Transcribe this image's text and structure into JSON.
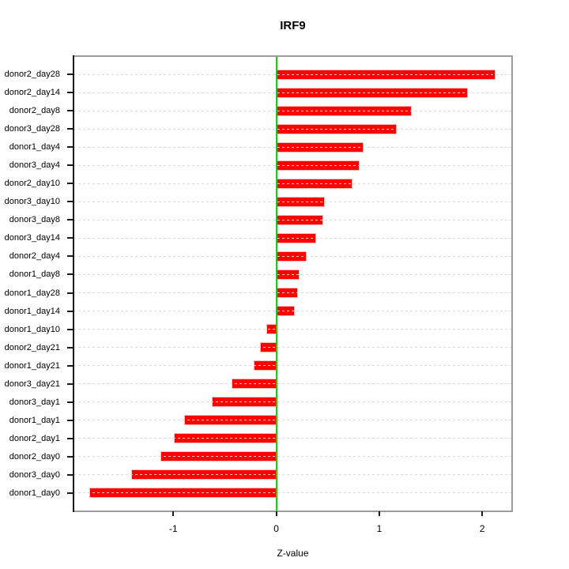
{
  "chart_data": {
    "type": "bar",
    "orientation": "horizontal",
    "title": "IRF9",
    "xlabel": "Z-value",
    "categories": [
      "donor2_day28",
      "donor2_day14",
      "donor2_day8",
      "donor3_day28",
      "donor1_day4",
      "donor3_day4",
      "donor2_day10",
      "donor3_day10",
      "donor3_day8",
      "donor3_day14",
      "donor2_day4",
      "donor1_day8",
      "donor1_day28",
      "donor1_day14",
      "donor1_day10",
      "donor2_day21",
      "donor1_day21",
      "donor3_day21",
      "donor3_day1",
      "donor1_day1",
      "donor2_day1",
      "donor2_day0",
      "donor3_day0",
      "donor1_day0"
    ],
    "values": [
      2.12,
      1.85,
      1.31,
      1.16,
      0.84,
      0.8,
      0.73,
      0.46,
      0.45,
      0.38,
      0.29,
      0.22,
      0.2,
      0.17,
      -0.09,
      -0.15,
      -0.21,
      -0.43,
      -0.62,
      -0.89,
      -0.99,
      -1.12,
      -1.4,
      -1.81
    ],
    "x_ticks": [
      "-1",
      "0",
      "1",
      "2"
    ],
    "x_tick_values": [
      -1,
      0,
      1,
      2
    ],
    "xlim": [
      -1.97,
      2.29
    ],
    "grid": true,
    "grid_style": "dotted",
    "legend_position": "none",
    "bar_color": "#ff0000",
    "zero_line_color": "#00dd00",
    "grid_color": "#d9d9d9",
    "box_color": "#9b9b9b",
    "axis_color": "#1a1a1a",
    "text_color": "#000000"
  }
}
